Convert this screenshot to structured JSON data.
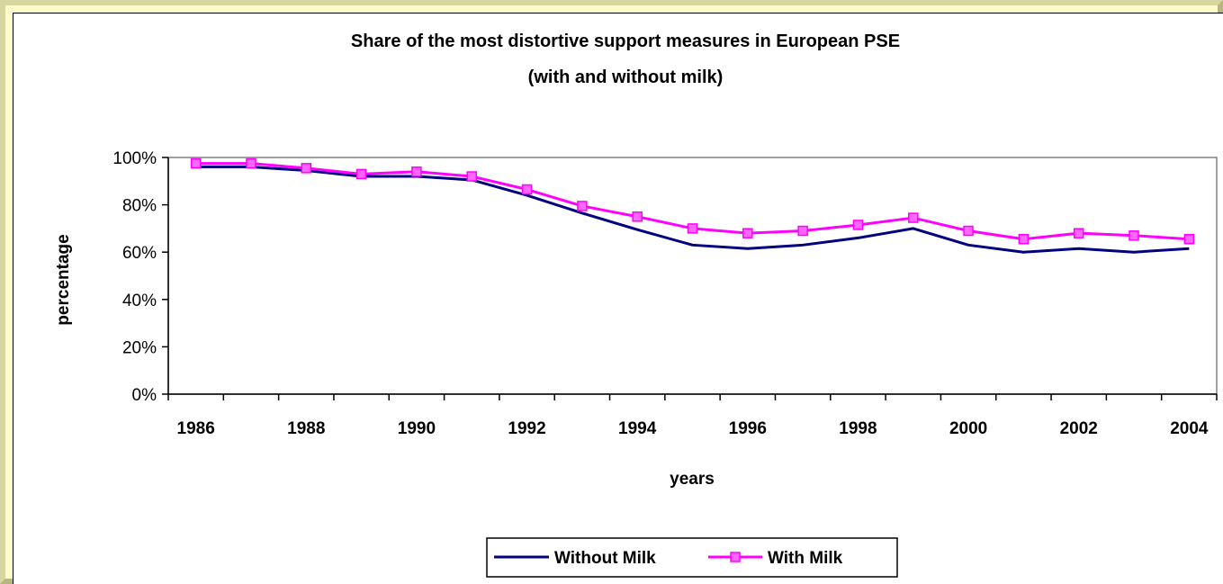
{
  "chart_data": {
    "type": "line",
    "title": "Share of the most distortive support measures in European PSE",
    "subtitle": "(with and without milk)",
    "xlabel": "years",
    "ylabel": "percentage",
    "x": [
      1986,
      1987,
      1988,
      1989,
      1990,
      1991,
      1992,
      1993,
      1994,
      1995,
      1996,
      1997,
      1998,
      1999,
      2000,
      2001,
      2002,
      2003,
      2004
    ],
    "x_tick_labels": [
      "1986",
      "1988",
      "1990",
      "1992",
      "1994",
      "1996",
      "1998",
      "2000",
      "2002",
      "2004"
    ],
    "y_tick_labels": [
      "0%",
      "20%",
      "40%",
      "60%",
      "80%",
      "100%"
    ],
    "ylim": [
      0,
      100
    ],
    "grid": false,
    "legend_position": "bottom",
    "series": [
      {
        "name": "Without Milk",
        "color": "#000080",
        "marker": "none",
        "values": [
          96,
          96,
          94.5,
          92,
          92,
          90.5,
          84,
          76.5,
          69.5,
          63,
          61.5,
          63,
          66,
          70,
          63,
          60,
          61.5,
          60,
          61.5
        ]
      },
      {
        "name": "With Milk",
        "color": "#ff00ff",
        "marker": "square",
        "values": [
          97.5,
          97.5,
          95.5,
          93,
          94,
          92,
          86.5,
          79.5,
          75,
          70,
          68,
          69,
          71.5,
          74.5,
          69,
          65.5,
          68,
          67,
          65.5
        ]
      }
    ]
  }
}
